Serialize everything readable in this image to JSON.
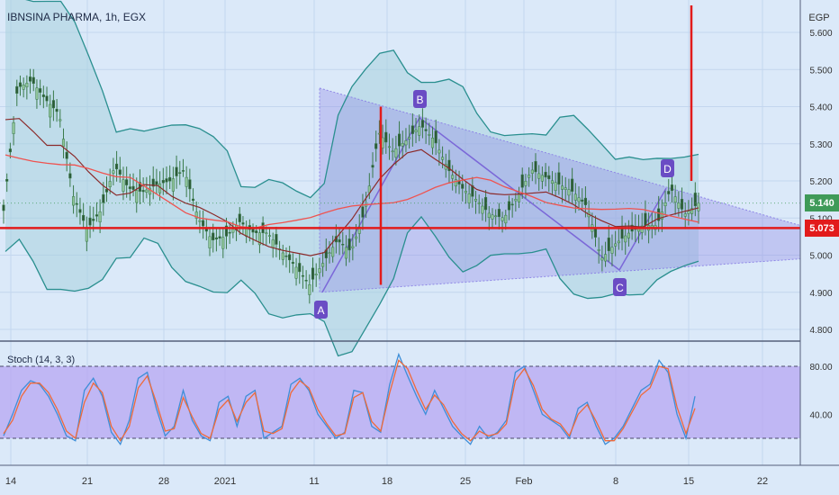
{
  "header": {
    "symbol_title": "IBNSINA PHARMA, 1h, EGX"
  },
  "price_axis": {
    "currency": "EGP",
    "ticks": [
      "5.600",
      "5.500",
      "5.400",
      "5.300",
      "5.200",
      "5.100",
      "5.000",
      "4.900",
      "4.800"
    ]
  },
  "time_axis": {
    "labels": [
      "14",
      "21",
      "28",
      "2021",
      "11",
      "18",
      "25",
      "Feb",
      "8",
      "15",
      "22"
    ]
  },
  "badges": {
    "last_price": "5.140",
    "support": "5.073"
  },
  "pattern_points": [
    "A",
    "B",
    "C",
    "D"
  ],
  "indicator": {
    "label": "Stoch (14, 3, 3)",
    "ticks": [
      "80.00",
      "40.00"
    ],
    "bands": [
      80,
      20
    ]
  },
  "colors": {
    "background": "#dbe9f9",
    "bollinger": "#2a8f8f",
    "ma_red": "#ef5350",
    "ma_dark": "#8b2a2a",
    "triangle": "#8e86e6",
    "support_line": "#e21b1b",
    "stoch_k": "#3e8ed8",
    "stoch_d": "#ef6a3a",
    "candle": "#3a7a4a",
    "point_label_bg": "#6a4cc4"
  },
  "chart_data": [
    {
      "type": "candlestick",
      "title": "IBNSINA PHARMA, 1h, EGX",
      "ylim": [
        4.77,
        5.64
      ],
      "x_labels": [
        "14",
        "21",
        "28",
        "2021",
        "11",
        "18",
        "25",
        "Feb",
        "8",
        "15",
        "22"
      ],
      "close_approx": [
        5.12,
        5.45,
        5.47,
        5.42,
        5.38,
        5.16,
        5.07,
        5.12,
        5.24,
        5.18,
        5.17,
        5.19,
        5.2,
        5.23,
        5.1,
        5.04,
        5.05,
        5.09,
        5.06,
        5.06,
        5.01,
        4.97,
        4.92,
        4.98,
        5.04,
        5.01,
        5.12,
        5.33,
        5.28,
        5.31,
        5.35,
        5.31,
        5.23,
        5.18,
        5.15,
        5.11,
        5.1,
        5.16,
        5.23,
        5.21,
        5.19,
        5.17,
        5.13,
        4.99,
        5.03,
        5.06,
        5.08,
        5.08,
        5.18,
        5.11,
        5.14
      ],
      "support_level": 5.073,
      "last_price": 5.14,
      "pattern_points": [
        {
          "label": "A",
          "value": 4.9
        },
        {
          "label": "B",
          "value": 5.37
        },
        {
          "label": "C",
          "value": 4.96
        },
        {
          "label": "D",
          "value": 5.18
        }
      ],
      "triangle_upper": [
        5.45,
        5.08
      ],
      "triangle_lower": [
        4.9,
        4.99
      ]
    },
    {
      "type": "line",
      "title": "Stoch (14, 3, 3)",
      "ylim": [
        0,
        100
      ],
      "bands": [
        80,
        20
      ],
      "series": [
        {
          "values": [
            22,
            40,
            60,
            68,
            65,
            55,
            40,
            22,
            18,
            60,
            70,
            55,
            25,
            15,
            35,
            70,
            75,
            45,
            22,
            30,
            60,
            35,
            22,
            18,
            50,
            55,
            30,
            55,
            60,
            20,
            25,
            30,
            65,
            70,
            60,
            40,
            30,
            20,
            25,
            60,
            58,
            30,
            25,
            65,
            90,
            72,
            55,
            40,
            60,
            45,
            30,
            22,
            15,
            30,
            20,
            25,
            35,
            75,
            80,
            60,
            40,
            35,
            30,
            20,
            45,
            50,
            30,
            15,
            20,
            30,
            45,
            60,
            65,
            85,
            75,
            40,
            20,
            55
          ]
        },
        {
          "values": [
            24,
            35,
            55,
            66,
            66,
            58,
            44,
            26,
            20,
            50,
            66,
            58,
            30,
            18,
            30,
            62,
            72,
            50,
            26,
            28,
            54,
            38,
            24,
            20,
            44,
            52,
            34,
            50,
            58,
            26,
            24,
            28,
            58,
            68,
            62,
            44,
            32,
            22,
            24,
            54,
            58,
            34,
            26,
            58,
            85,
            78,
            60,
            44,
            56,
            48,
            34,
            24,
            18,
            26,
            22,
            24,
            32,
            68,
            78,
            64,
            44,
            36,
            32,
            22,
            40,
            48,
            34,
            18,
            18,
            28,
            42,
            56,
            62,
            80,
            78,
            46,
            24,
            45
          ]
        }
      ]
    }
  ]
}
